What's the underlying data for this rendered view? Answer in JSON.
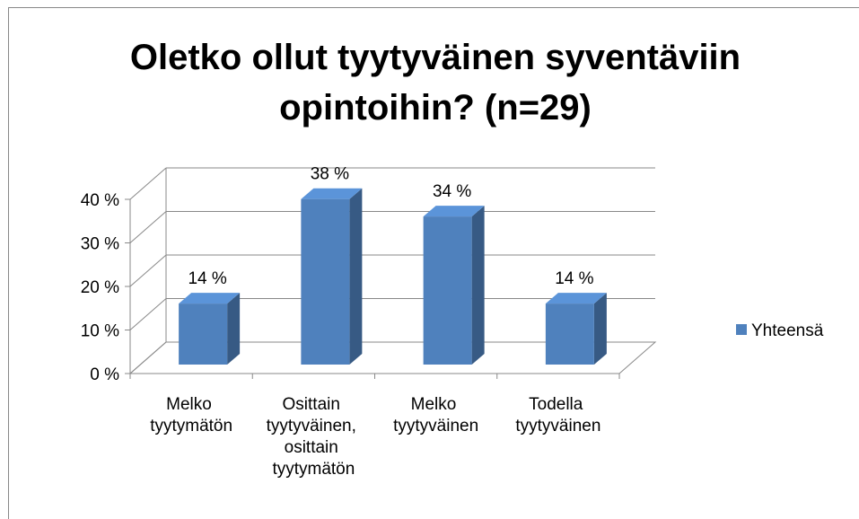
{
  "chart_data": {
    "type": "bar3d",
    "title": "Oletko ollut tyytyväinen syventäviin opintoihin? (n=29)",
    "categories": [
      "Melko tyytymätön",
      "Osittain tyytyväinen, osittain tyytymätön",
      "Melko tyytyväinen",
      "Todella tyytyväinen"
    ],
    "series": [
      {
        "name": "Yhteensä",
        "color": "#4f81bd",
        "values": [
          14,
          38,
          34,
          14
        ],
        "value_labels": [
          "14 %",
          "38 %",
          "34 %",
          "14 %"
        ]
      }
    ],
    "ylim": [
      0,
      40
    ],
    "yticks": [
      {
        "value": 0,
        "label": "0 %"
      },
      {
        "value": 10,
        "label": "10 %"
      },
      {
        "value": 20,
        "label": "20 %"
      },
      {
        "value": 30,
        "label": "30 %"
      },
      {
        "value": 40,
        "label": "40 %"
      }
    ],
    "grid": true,
    "legend": "right"
  }
}
